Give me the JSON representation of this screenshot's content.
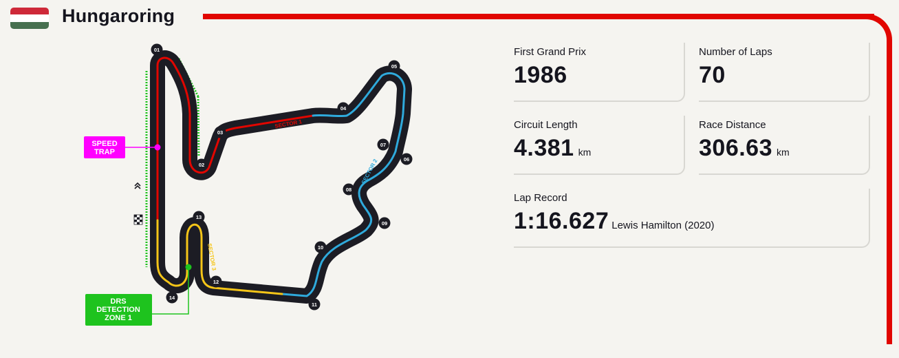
{
  "header": {
    "circuit_name": "Hungaroring",
    "flag": {
      "colors": [
        "#ce2939",
        "#ffffff",
        "#477050"
      ]
    },
    "accent_color": "#e10600"
  },
  "map": {
    "turns": [
      "01",
      "02",
      "03",
      "04",
      "05",
      "06",
      "07",
      "08",
      "09",
      "10",
      "11",
      "12",
      "13",
      "14"
    ],
    "sectors": {
      "s1": "SECTOR 1",
      "s2": "SECTOR 2",
      "s3": "SECTOR 3"
    },
    "sector_colors": {
      "s1": "#e10600",
      "s2": "#2faadc",
      "s3": "#f5c518"
    },
    "speed_trap": {
      "line1": "SPEED",
      "line2": "TRAP",
      "color": "#ff00ff"
    },
    "drs": {
      "line1": "DRS",
      "line2": "DETECTION",
      "line3": "ZONE 1",
      "color": "#1ec31e"
    },
    "icons": [
      "chevrons-up-icon",
      "checkered-flag-icon"
    ]
  },
  "stats": {
    "first_grand_prix": {
      "label": "First Grand Prix",
      "value": "1986"
    },
    "number_of_laps": {
      "label": "Number of Laps",
      "value": "70"
    },
    "circuit_length": {
      "label": "Circuit Length",
      "value": "4.381",
      "unit": "km"
    },
    "race_distance": {
      "label": "Race Distance",
      "value": "306.63",
      "unit": "km"
    },
    "lap_record": {
      "label": "Lap Record",
      "value": "1:16.627",
      "holder": "Lewis Hamilton (2020)"
    }
  }
}
